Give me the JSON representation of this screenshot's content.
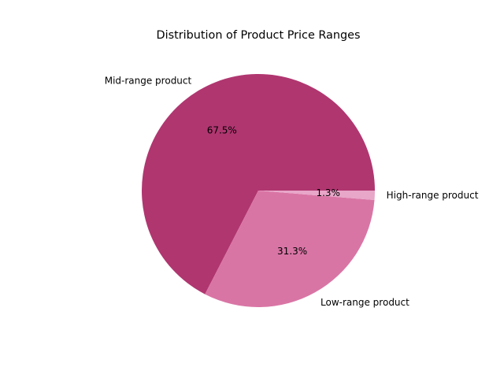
{
  "chart_data": {
    "type": "pie",
    "title": "Distribution of Product Price Ranges",
    "categories": [
      "Mid-range product",
      "Low-range product",
      "High-range product"
    ],
    "values": [
      67.5,
      31.3,
      1.3
    ],
    "percent_labels": [
      "67.5%",
      "31.3%",
      "1.3%"
    ],
    "colors": [
      "#b03670",
      "#d975a5",
      "#e8a6c8"
    ],
    "start_angle_deg": 0,
    "direction": "counterclockwise",
    "legend": "none"
  }
}
